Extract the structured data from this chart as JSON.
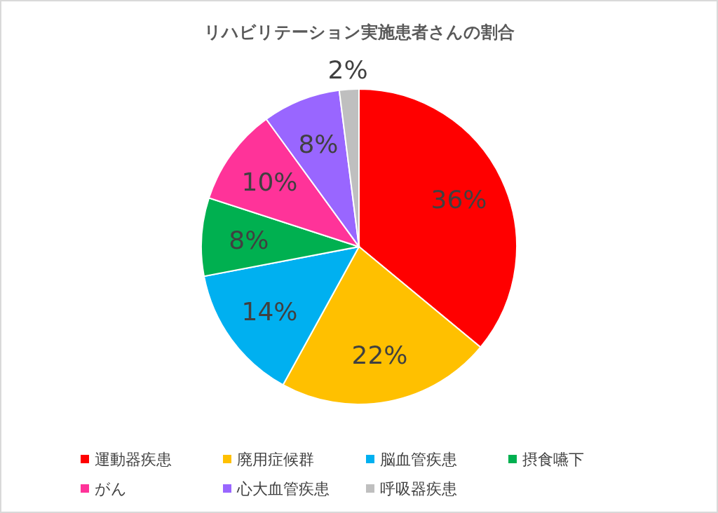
{
  "chart_data": {
    "type": "pie",
    "title": "リハビリテーション実施患者さんの割合",
    "categories": [
      "運動器疾患",
      "廃用症候群",
      "脳血管疾患",
      "摂食嚥下",
      "がん",
      "心大血管疾患",
      "呼吸器疾患"
    ],
    "values": [
      36,
      22,
      14,
      8,
      10,
      8,
      2
    ],
    "value_labels": [
      "36%",
      "22%",
      "14%",
      "8%",
      "10%",
      "8%",
      "2%"
    ],
    "colors": [
      "#ff0000",
      "#ffc000",
      "#00b0f0",
      "#00b050",
      "#ff3399",
      "#9966ff",
      "#bfbfbf"
    ],
    "legend": "bottom"
  }
}
